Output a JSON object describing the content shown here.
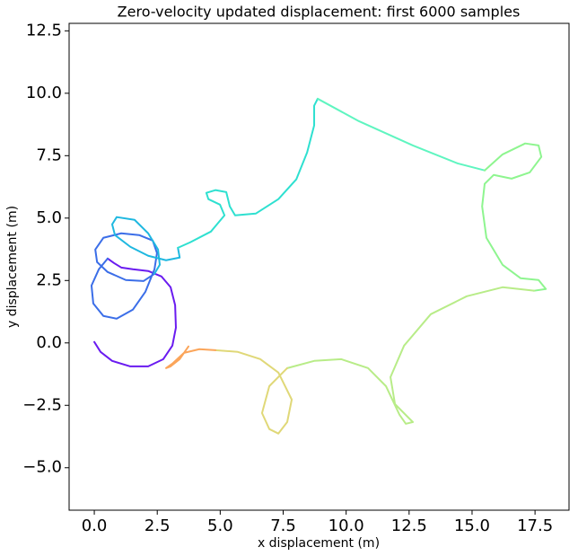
{
  "chart_data": {
    "type": "line",
    "title": "Zero-velocity updated displacement: first 6000 samples",
    "x_label": "x displacement (m)",
    "y_label": "y displacement (m)",
    "xlim": [
      -1.0,
      18.85
    ],
    "ylim": [
      -6.7,
      12.8
    ],
    "xticks": [
      {
        "value": 0,
        "label": "0.0"
      },
      {
        "value": 2.5,
        "label": "2.5"
      },
      {
        "value": 5,
        "label": "5.0"
      },
      {
        "value": 7.5,
        "label": "7.5"
      },
      {
        "value": 10,
        "label": "10.0"
      },
      {
        "value": 12.5,
        "label": "12.5"
      },
      {
        "value": 15,
        "label": "15.0"
      },
      {
        "value": 17.5,
        "label": "17.5"
      }
    ],
    "yticks": [
      {
        "value": -5,
        "label": "−5.0"
      },
      {
        "value": -2.5,
        "label": "−2.5"
      },
      {
        "value": 0,
        "label": "0.0"
      },
      {
        "value": 2.5,
        "label": "2.5"
      },
      {
        "value": 5,
        "label": "5.0"
      },
      {
        "value": 7.5,
        "label": "7.5"
      },
      {
        "value": 10,
        "label": "10.0"
      },
      {
        "value": 12.5,
        "label": "12.5"
      }
    ],
    "grid": false,
    "series": [
      {
        "color": "#6a1bf0",
        "x": [
          0,
          0.25,
          0.71,
          1.43,
          2.14,
          2.74,
          3.1,
          3.24,
          3.21,
          3.03,
          2.67,
          2.14,
          1.53,
          1.07,
          0.78,
          0.53
        ],
        "values": [
          0.04,
          -0.36,
          -0.72,
          -0.94,
          -0.94,
          -0.65,
          -0.11,
          0.61,
          1.51,
          2.23,
          2.66,
          2.88,
          2.95,
          3.02,
          3.2,
          3.38
        ]
      },
      {
        "color": "#3b6ee8",
        "x": [
          0.53,
          0.18,
          -0.11,
          -0.04,
          0.36,
          0.89,
          1.53,
          2.03,
          2.39,
          2.49,
          2.32,
          1.78,
          1.07,
          0.36,
          0.04,
          0.11,
          0.53,
          1.25,
          1.96,
          2.39
        ],
        "values": [
          3.38,
          2.95,
          2.3,
          1.58,
          1.08,
          0.97,
          1.33,
          2.05,
          2.95,
          3.6,
          4.1,
          4.32,
          4.39,
          4.21,
          3.74,
          3.24,
          2.84,
          2.52,
          2.48,
          2.77
        ]
      },
      {
        "color": "#1fb8e0",
        "x": [
          2.39,
          2.6,
          2.53,
          2.14,
          1.6,
          0.89,
          0.71,
          0.82,
          1.43,
          2.14,
          2.85,
          3.39,
          3.32
        ],
        "values": [
          2.77,
          3.13,
          3.74,
          4.39,
          4.93,
          5.04,
          4.75,
          4.32,
          3.85,
          3.49,
          3.31,
          3.42,
          3.81
        ]
      },
      {
        "color": "#2ee0d0",
        "x": [
          3.32,
          3.81,
          4.63,
          5.17,
          4.99,
          4.53,
          4.45,
          4.81,
          5.24,
          5.38,
          5.59,
          6.41,
          7.31,
          8.02,
          8.45,
          8.73,
          8.73,
          8.87
        ],
        "values": [
          3.81,
          4.03,
          4.46,
          5.11,
          5.54,
          5.76,
          6.01,
          6.12,
          6.04,
          5.47,
          5.11,
          5.18,
          5.76,
          6.55,
          7.63,
          8.71,
          9.5,
          9.78
        ]
      },
      {
        "color": "#5ff5c0",
        "x": [
          8.87,
          10.51,
          12.65,
          14.43,
          15.5
        ],
        "values": [
          9.78,
          8.88,
          7.91,
          7.19,
          6.91
        ]
      },
      {
        "color": "#8ef58f",
        "x": [
          15.5,
          16.21,
          17.11,
          17.64,
          17.75,
          17.29,
          16.57,
          15.86,
          15.5,
          15.4,
          15.57,
          16.21,
          16.93,
          17.64,
          17.93,
          17.46
        ],
        "values": [
          6.91,
          7.55,
          7.99,
          7.91,
          7.45,
          6.83,
          6.58,
          6.73,
          6.37,
          5.47,
          4.21,
          3.13,
          2.59,
          2.52,
          2.16,
          2.09
        ]
      },
      {
        "color": "#b8ec88",
        "x": [
          17.46,
          16.21,
          14.79,
          13.36,
          12.3,
          11.76,
          11.94,
          12.47,
          12.65,
          12.37,
          12.12,
          11.58,
          10.87,
          9.8,
          8.73,
          7.66
        ],
        "values": [
          2.09,
          2.23,
          1.87,
          1.15,
          -0.11,
          -1.37,
          -2.45,
          -2.99,
          -3.17,
          -3.24,
          -2.88,
          -1.73,
          -1.01,
          -0.65,
          -0.72,
          -1.01
        ]
      },
      {
        "color": "#e0d878",
        "x": [
          7.66,
          6.95,
          6.66,
          6.95,
          7.31,
          7.66,
          7.84,
          7.31,
          6.59,
          5.7,
          4.81
        ],
        "values": [
          -1.01,
          -1.73,
          -2.81,
          -3.45,
          -3.63,
          -3.17,
          -2.27,
          -1.19,
          -0.65,
          -0.36,
          -0.29
        ]
      },
      {
        "color": "#fba55a",
        "x": [
          4.81,
          4.17,
          3.56,
          3.1,
          2.85,
          3.03,
          3.39,
          3.74
        ],
        "values": [
          -0.29,
          -0.25,
          -0.4,
          -0.83,
          -1.01,
          -0.94,
          -0.65,
          -0.14
        ]
      }
    ]
  }
}
